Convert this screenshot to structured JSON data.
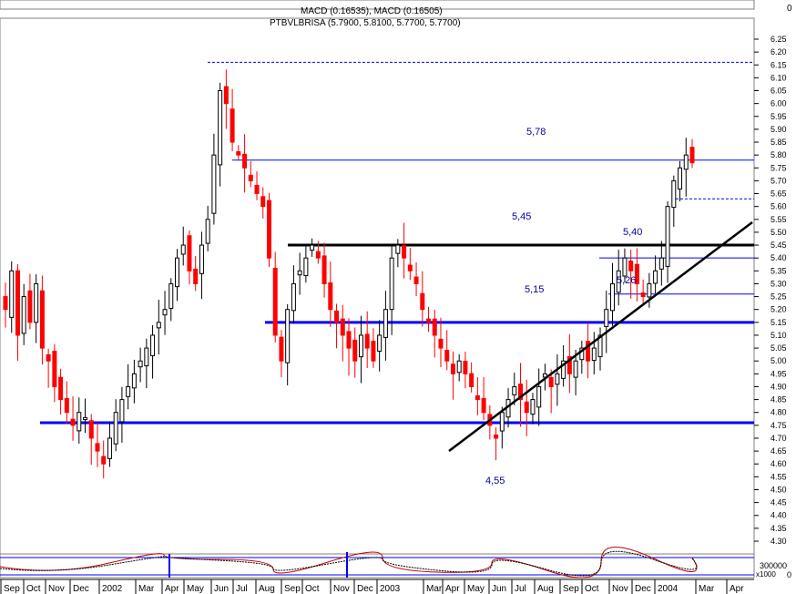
{
  "header": {
    "macd_label": "MACD (0.16535), MACD (0.16505)",
    "title": "PTBVLBRISA (5.7900, 5.8100, 5.7700, 5.7700)",
    "macd_axis_value": "0"
  },
  "colors": {
    "up": "#000000",
    "down": "#ff0000",
    "level_line": "#0000ff",
    "label_text": "#0000aa",
    "trendline": "#000000"
  },
  "chart_data": {
    "type": "candlestick",
    "ylim": [
      4.25,
      6.3
    ],
    "y_ticks": [
      "4.30",
      "4.35",
      "4.40",
      "4.45",
      "4.50",
      "4.55",
      "4.60",
      "4.65",
      "4.70",
      "4.75",
      "4.80",
      "4.85",
      "4.90",
      "4.95",
      "5.00",
      "5.05",
      "5.10",
      "5.15",
      "5.20",
      "5.25",
      "5.30",
      "5.35",
      "5.40",
      "5.45",
      "5.50",
      "5.55",
      "5.60",
      "5.65",
      "5.70",
      "5.75",
      "5.80",
      "5.85",
      "5.90",
      "5.95",
      "6.00",
      "6.05",
      "6.10",
      "6.15",
      "6.20",
      "6.25"
    ],
    "x_labels": [
      "Sep",
      "Oct",
      "Nov",
      "Dec",
      "2002",
      "Mar",
      "Apr",
      "May",
      "Jun",
      "Jul",
      "Aug",
      "Sep",
      "Oct",
      "Nov",
      "Dec",
      "2003",
      "Mar",
      "Apr",
      "May",
      "Jun",
      "Jul",
      "Aug",
      "Sep",
      "Oct",
      "Nov",
      "Dec",
      "2004",
      "Mar",
      "Apr"
    ],
    "weeks_from": "Sep 2001",
    "weeks_to": "Mar 2004",
    "close_series": [
      5.2,
      5.35,
      5.1,
      5.25,
      5.15,
      5.3,
      5.05,
      5.0,
      4.9,
      4.85,
      4.8,
      4.75,
      4.8,
      4.78,
      4.7,
      4.65,
      4.6,
      4.7,
      4.8,
      4.85,
      4.9,
      4.95,
      5.0,
      5.05,
      5.1,
      5.15,
      5.2,
      5.3,
      5.4,
      5.45,
      5.35,
      5.3,
      5.45,
      5.55,
      5.8,
      6.05,
      6.0,
      5.85,
      5.8,
      5.75,
      5.7,
      5.65,
      5.6,
      5.4,
      5.1,
      5.0,
      5.2,
      5.3,
      5.35,
      5.4,
      5.45,
      5.4,
      5.3,
      5.2,
      5.15,
      5.1,
      5.05,
      5.0,
      5.1,
      5.05,
      5.0,
      5.1,
      5.2,
      5.4,
      5.45,
      5.4,
      5.35,
      5.3,
      5.2,
      5.15,
      5.1,
      5.05,
      5.0,
      4.95,
      5.0,
      4.95,
      4.9,
      4.85,
      4.8,
      4.75,
      4.7,
      4.8,
      4.85,
      4.9,
      4.85,
      4.8,
      4.85,
      4.9,
      4.95,
      4.9,
      4.95,
      5.0,
      4.95,
      5.0,
      5.05,
      5.0,
      5.05,
      5.1,
      5.2,
      5.3,
      5.35,
      5.4,
      5.35,
      5.3,
      5.25,
      5.3,
      5.35,
      5.4,
      5.6,
      5.7,
      5.75,
      5.8,
      5.77
    ],
    "levels": [
      {
        "value": 5.78,
        "label": "5,78"
      },
      {
        "value": 5.45,
        "label": "5,45"
      },
      {
        "value": 5.4,
        "label": "5,40"
      },
      {
        "value": 5.26,
        "label": "5,26"
      },
      {
        "value": 5.15,
        "label": "5,15"
      },
      {
        "value": 4.55,
        "label": "4,55"
      }
    ],
    "horizontal_lines": [
      6.16,
      5.78,
      5.63,
      5.45,
      5.4,
      5.26,
      5.15,
      4.76
    ],
    "trendline": {
      "from": {
        "date": "Apr 2003",
        "value": 4.61
      },
      "to": {
        "date": "Mar 2004",
        "value": 5.45
      }
    },
    "volume_axis": [
      "300000",
      "x1000",
      "0"
    ]
  }
}
